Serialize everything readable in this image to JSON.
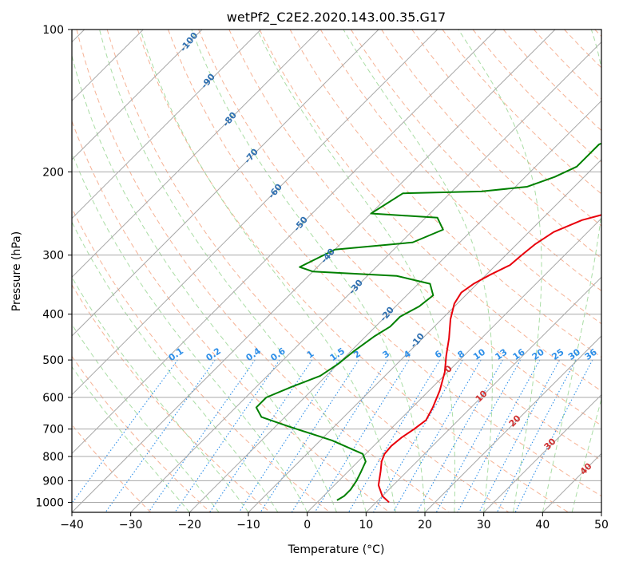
{
  "chart_data": {
    "type": "line",
    "title": "wetPf2_C2E2.2020.143.00.35.G17",
    "xlabel": "Temperature (°C)",
    "ylabel": "Pressure (hPa)",
    "xlim": [
      -40,
      50
    ],
    "ylim": [
      1050,
      100
    ],
    "y_scale": "log",
    "grid": true,
    "x_ticks": [
      "−40",
      "−30",
      "−20",
      "−10",
      "0",
      "10",
      "20",
      "30",
      "40",
      "50"
    ],
    "y_ticks": [
      "100",
      "200",
      "300",
      "400",
      "500",
      "600",
      "700",
      "800",
      "900",
      "1000"
    ],
    "colors": {
      "temperature": "#e8000b",
      "dewpoint": "#008000",
      "isotherm": "#a0a0a0",
      "dry_adiabat": "#f4a582",
      "moist_adiabat": "#a1d99b",
      "mixing_ratio": "#2e8fe8"
    },
    "series": [
      {
        "role": "temperature",
        "points": [
          [
            12.2,
            1000
          ],
          [
            10.0,
            970
          ],
          [
            7.5,
            920
          ],
          [
            5.5,
            860
          ],
          [
            4.0,
            820
          ],
          [
            3.2,
            790
          ],
          [
            3.0,
            760
          ],
          [
            3.3,
            730
          ],
          [
            4.0,
            700
          ],
          [
            4.5,
            670
          ],
          [
            3.5,
            630
          ],
          [
            1.8,
            580
          ],
          [
            -0.5,
            530
          ],
          [
            -3.0,
            490
          ],
          [
            -5.5,
            450
          ],
          [
            -8.5,
            410
          ],
          [
            -10.5,
            380
          ],
          [
            -11.2,
            360
          ],
          [
            -10.6,
            345
          ],
          [
            -9.3,
            330
          ],
          [
            -7.6,
            315
          ],
          [
            -7.3,
            300
          ],
          [
            -6.9,
            285
          ],
          [
            -5.8,
            268
          ],
          [
            -3.0,
            253
          ],
          [
            2.0,
            240
          ],
          [
            6.0,
            228
          ],
          [
            11.0,
            210
          ],
          [
            17.0,
            190
          ],
          [
            22.0,
            170
          ],
          [
            27.0,
            150
          ],
          [
            32.0,
            130
          ],
          [
            36.5,
            115
          ],
          [
            42.0,
            100
          ]
        ]
      },
      {
        "role": "dewpoint",
        "points": [
          [
            3.0,
            990
          ],
          [
            3.5,
            970
          ],
          [
            3.5,
            940
          ],
          [
            3.0,
            900
          ],
          [
            2.2,
            860
          ],
          [
            1.3,
            820
          ],
          [
            -0.5,
            790
          ],
          [
            -8.0,
            740
          ],
          [
            -18.0,
            690
          ],
          [
            -24.0,
            660
          ],
          [
            -26.5,
            630
          ],
          [
            -26.5,
            600
          ],
          [
            -24.0,
            570
          ],
          [
            -21.0,
            540
          ],
          [
            -20.0,
            510
          ],
          [
            -19.5,
            480
          ],
          [
            -18.5,
            445
          ],
          [
            -17.5,
            425
          ],
          [
            -17.5,
            405
          ],
          [
            -16.0,
            385
          ],
          [
            -15.5,
            365
          ],
          [
            -18.0,
            345
          ],
          [
            -25.0,
            332
          ],
          [
            -40.0,
            325
          ],
          [
            -43.0,
            318
          ],
          [
            -40.0,
            292
          ],
          [
            -28.0,
            282
          ],
          [
            -25.0,
            265
          ],
          [
            -28.0,
            250
          ],
          [
            -40.0,
            245
          ],
          [
            -38.0,
            222
          ],
          [
            -25.0,
            220
          ],
          [
            -18.0,
            215
          ],
          [
            -15.0,
            205
          ],
          [
            -13.0,
            195
          ],
          [
            -13.0,
            185
          ],
          [
            -13.0,
            175
          ],
          [
            -9.0,
            163
          ],
          [
            -11.0,
            150
          ],
          [
            -16.0,
            143
          ],
          [
            -14.0,
            135
          ],
          [
            -11.0,
            128
          ],
          [
            -7.0,
            118
          ],
          [
            -2.5,
            108
          ],
          [
            -1.0,
            100
          ]
        ]
      }
    ],
    "mixing_ratio_lines": [
      "0.1",
      "0.2",
      "0.4",
      "0.6",
      "1",
      "1.5",
      "2",
      "3",
      "4",
      "6",
      "8",
      "10",
      "13",
      "16",
      "20",
      "25",
      "30",
      "36"
    ],
    "dry_adiabat_labels": [
      "-100",
      "-90",
      "-80",
      "-70",
      "-60",
      "-50",
      "-40",
      "-30",
      "-20",
      "-10"
    ],
    "moist_adiabat_labels": [
      "0",
      "10",
      "20",
      "30",
      "40"
    ]
  }
}
